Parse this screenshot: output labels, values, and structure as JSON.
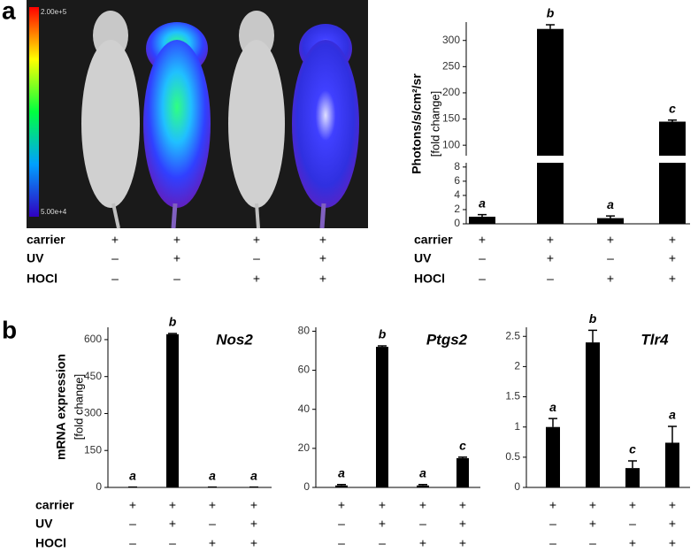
{
  "panel_labels": [
    "a",
    "b"
  ],
  "imaging": {
    "scale_max": "2.00e+5",
    "scale_min": "5.00e+4"
  },
  "conditions": {
    "labels": [
      "carrier",
      "UV",
      "HOCl"
    ],
    "signs": [
      [
        "+",
        "+",
        "+",
        "+"
      ],
      [
        "–",
        "+",
        "–",
        "+"
      ],
      [
        "–",
        "–",
        "+",
        "+"
      ]
    ]
  },
  "chart_data": [
    {
      "type": "bar",
      "ylabel": "Photons/s/cm²/sr",
      "ylabel_sub": "[fold change]",
      "values": [
        1,
        322,
        0.8,
        145
      ],
      "errors": [
        0.3,
        8,
        0.3,
        3
      ],
      "annotations": [
        "a",
        "b",
        "a",
        "c"
      ],
      "color": "#000000",
      "segments": [
        {
          "ylim": [
            0,
            8.6
          ],
          "yticks": [
            0,
            2,
            4,
            6,
            8
          ]
        },
        {
          "ylim": [
            80,
            335
          ],
          "yticks": [
            100,
            150,
            200,
            250,
            300
          ]
        }
      ]
    },
    {
      "type": "bar",
      "title": "Nos2",
      "ylabel": "mRNA expression",
      "ylabel_sub": "[fold change]",
      "values": [
        1,
        622,
        1,
        1
      ],
      "errors": [
        0.5,
        3,
        0.5,
        0.5
      ],
      "annotations": [
        "a",
        "b",
        "a",
        "a"
      ],
      "color": "#000000",
      "ylim": [
        0,
        650
      ],
      "yticks": [
        0,
        150,
        300,
        450,
        600
      ]
    },
    {
      "type": "bar",
      "title": "Ptgs2",
      "values": [
        1,
        72,
        1,
        15
      ],
      "errors": [
        0.5,
        0.5,
        0.5,
        0.5
      ],
      "annotations": [
        "a",
        "b",
        "a",
        "c"
      ],
      "color": "#000000",
      "ylim": [
        0,
        82
      ],
      "yticks": [
        0,
        20,
        40,
        60,
        80
      ]
    },
    {
      "type": "bar",
      "title": "Tlr4",
      "values": [
        1.0,
        2.4,
        0.32,
        0.74
      ],
      "errors": [
        0.14,
        0.2,
        0.12,
        0.27
      ],
      "annotations": [
        "a",
        "b",
        "c",
        "a"
      ],
      "color": "#000000",
      "ylim": [
        0,
        2.65
      ],
      "yticks": [
        0,
        0.5,
        1,
        1.5,
        2,
        2.5
      ]
    }
  ]
}
